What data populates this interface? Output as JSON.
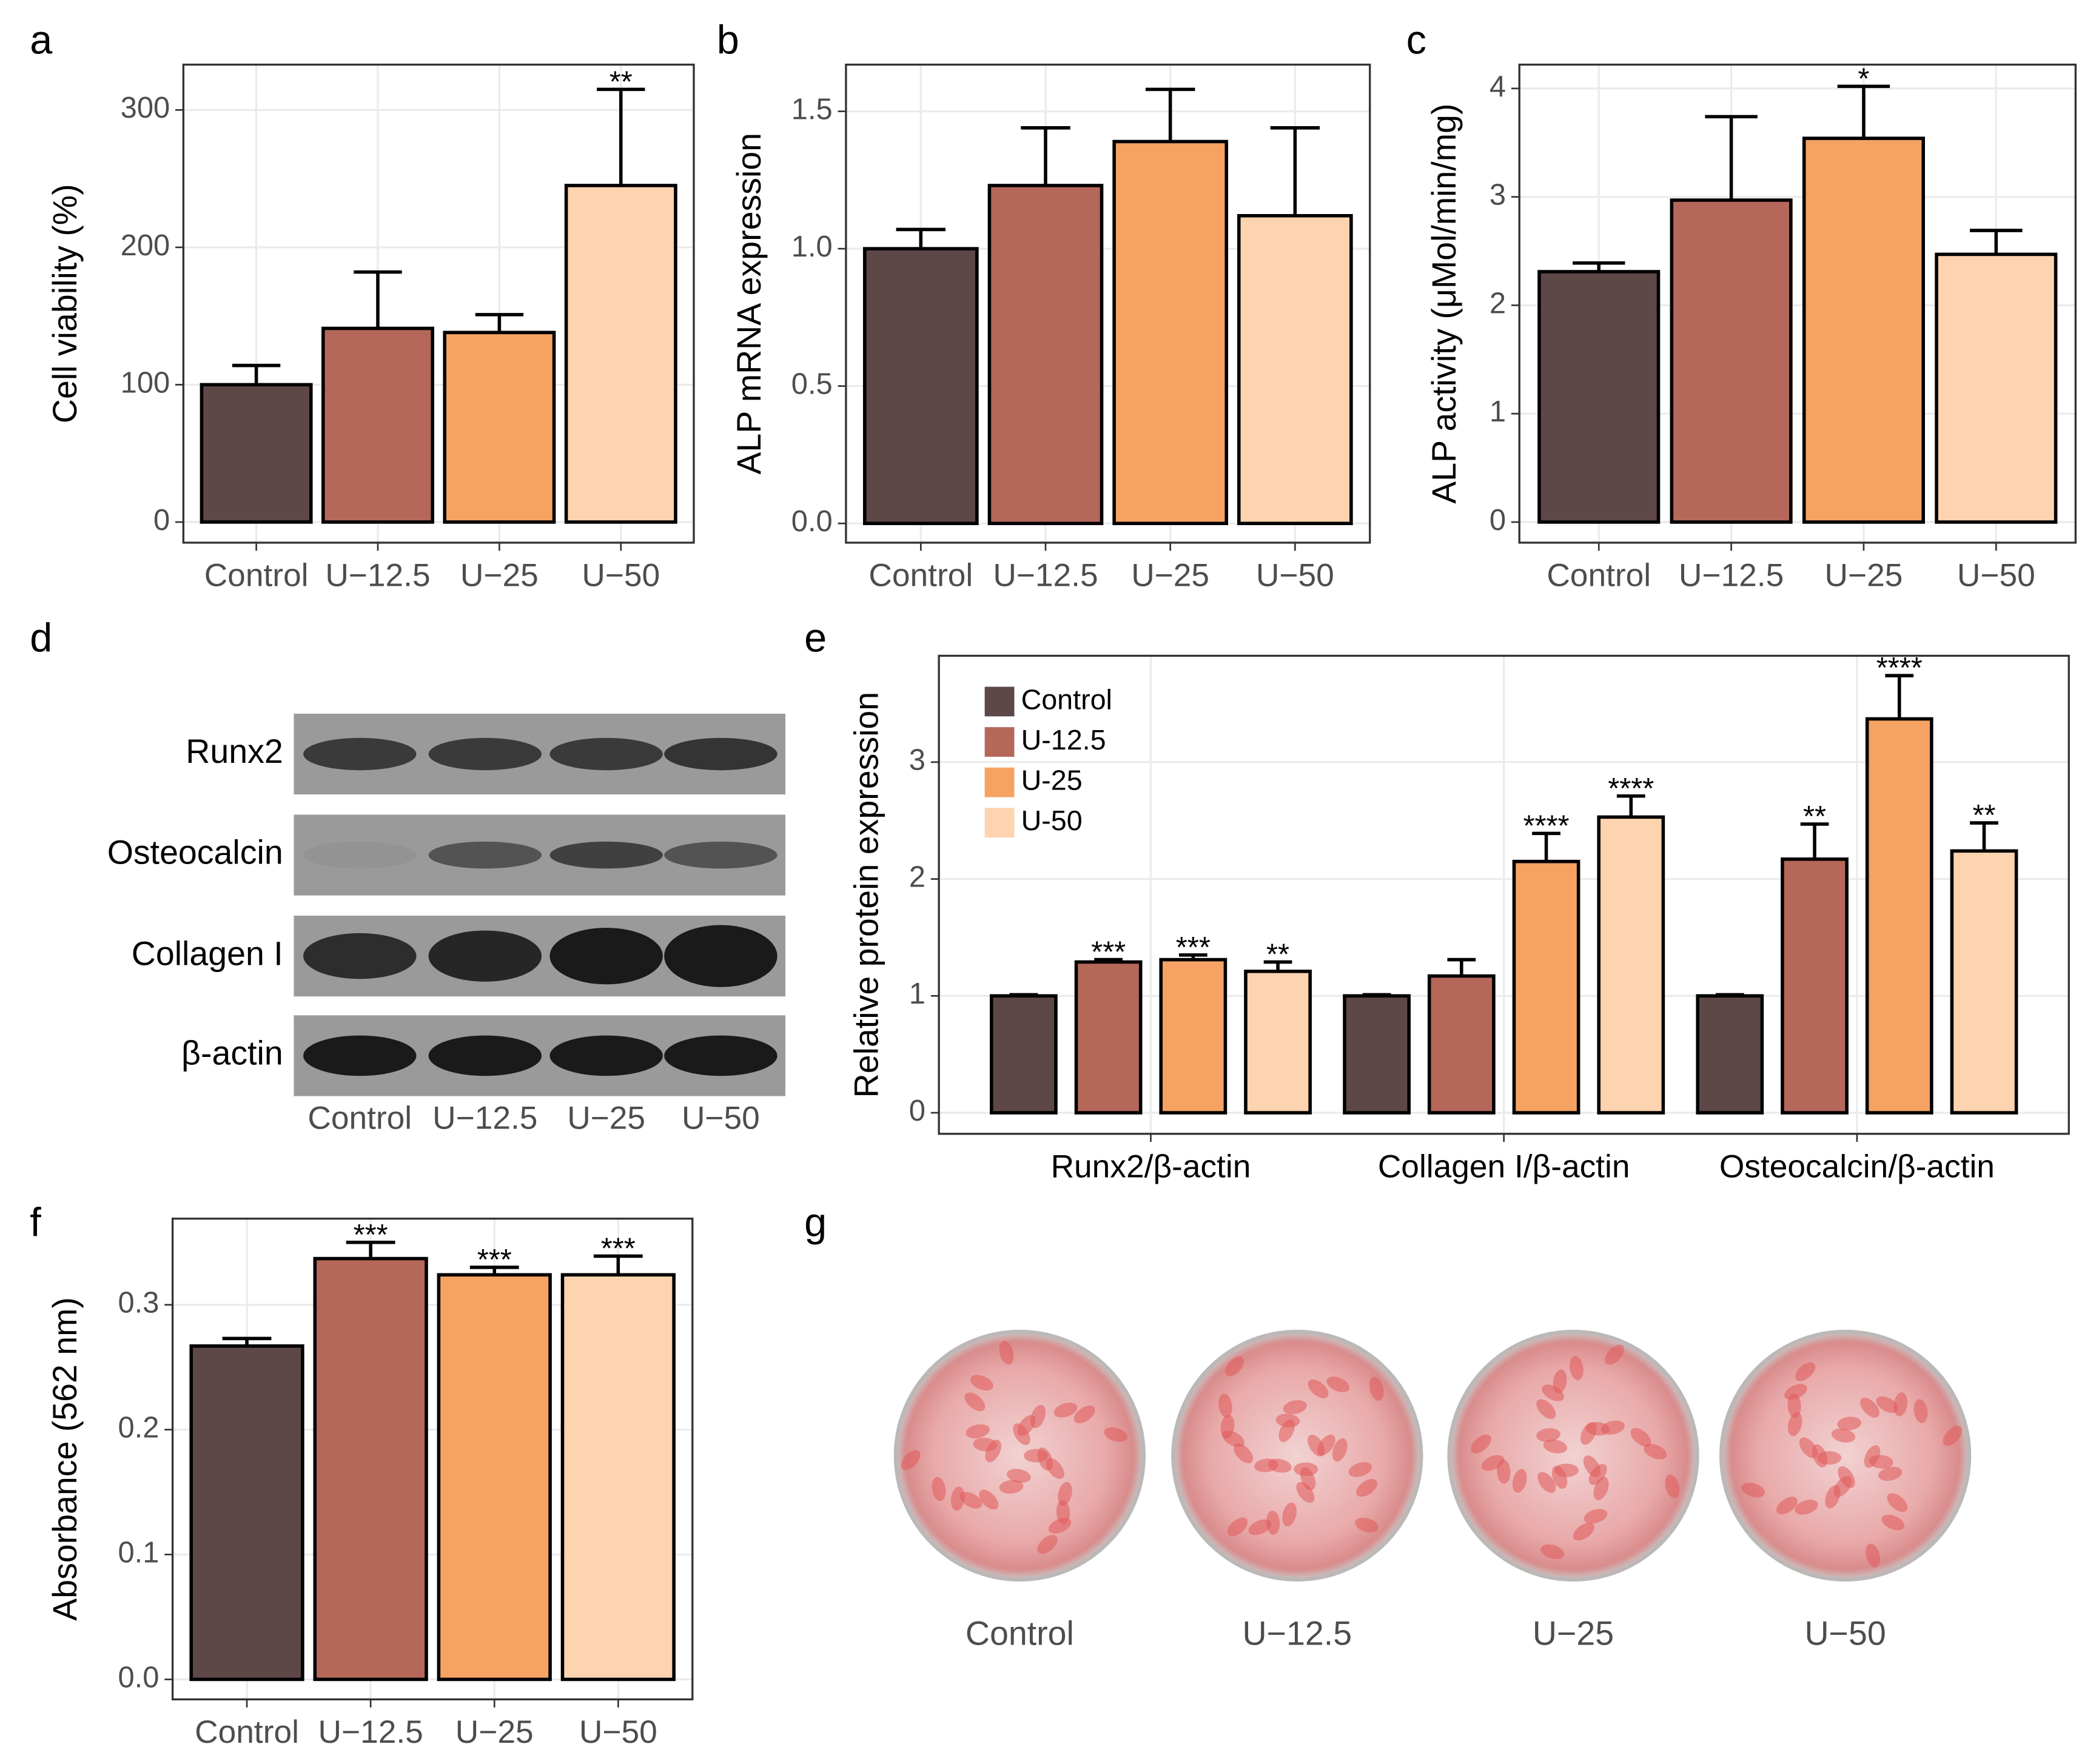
{
  "chart_data": [
    {
      "type": "bar",
      "panel": "a",
      "ylabel": "Cell viability (%)",
      "categories": [
        "Control",
        "U−12.5",
        "U−25",
        "U−50"
      ],
      "values": [
        100,
        141,
        138,
        245
      ],
      "errors": [
        14,
        41,
        13,
        70
      ],
      "annotations": [
        null,
        null,
        null,
        "**"
      ],
      "colors": [
        "#5e4747",
        "#b5675a",
        "#f5a262",
        "#fdd3b0"
      ],
      "ylim": [
        -15,
        333
      ],
      "yticks": [
        0,
        100,
        200,
        300
      ],
      "grid": true
    },
    {
      "type": "bar",
      "panel": "b",
      "ylabel": "ALP mRNA expression",
      "categories": [
        "Control",
        "U−12.5",
        "U−25",
        "U−50"
      ],
      "values": [
        1.0,
        1.23,
        1.39,
        1.12
      ],
      "errors": [
        0.07,
        0.21,
        0.19,
        0.32
      ],
      "colors": [
        "#5e4747",
        "#b5675a",
        "#f5a262",
        "#fdd3b0"
      ],
      "ylim": [
        -0.07,
        1.67
      ],
      "yticks": [
        {
          "value": 0,
          "label": "0.0"
        },
        0.5,
        {
          "value": 1,
          "label": "1.0"
        },
        1.5
      ],
      "grid": true
    },
    {
      "type": "bar",
      "panel": "c",
      "ylabel": "ALP activity (μMol/min/mg)",
      "categories": [
        "Control",
        "U−12.5",
        "U−25",
        "U−50"
      ],
      "values": [
        2.31,
        2.97,
        3.54,
        2.47
      ],
      "errors": [
        0.08,
        0.77,
        0.48,
        0.22
      ],
      "annotations": [
        null,
        null,
        "*",
        null
      ],
      "colors": [
        "#5e4747",
        "#b5675a",
        "#f5a262",
        "#fdd3b0"
      ],
      "ylim": [
        -0.19,
        4.22
      ],
      "yticks": [
        0,
        1,
        2,
        3,
        4
      ],
      "grid": true
    },
    {
      "type": "grouped-bar",
      "panel": "e",
      "ylabel": "Relative protein expression",
      "categories": [
        "Runx2/β-actin",
        "Collagen I/β-actin",
        "Osteocalcin/β-actin"
      ],
      "series": [
        {
          "name": "Control",
          "color": "#5e4747",
          "values": [
            1,
            1,
            1
          ],
          "errors": [
            0.01,
            0.01,
            0.01
          ]
        },
        {
          "name": "U-12.5",
          "color": "#b5675a",
          "values": [
            1.29,
            1.17,
            2.17
          ],
          "errors": [
            0.02,
            0.14,
            0.3
          ],
          "annotations": [
            "***",
            null,
            "**"
          ]
        },
        {
          "name": "U-25",
          "color": "#f5a262",
          "values": [
            1.31,
            2.15,
            3.37
          ],
          "errors": [
            0.04,
            0.24,
            0.37
          ],
          "annotations": [
            "***",
            "****",
            "****"
          ]
        },
        {
          "name": "U-50",
          "color": "#fdd3b0",
          "values": [
            1.21,
            2.53,
            2.24
          ],
          "errors": [
            0.08,
            0.18,
            0.24
          ],
          "annotations": [
            "**",
            "****",
            "**"
          ]
        }
      ],
      "legend": "top-left",
      "ylim": [
        -0.18,
        3.91
      ],
      "yticks": [
        0,
        1,
        2,
        3
      ],
      "grid": true
    },
    {
      "type": "bar",
      "panel": "f",
      "ylabel": "Absorbance (562 nm)",
      "categories": [
        "Control",
        "U−12.5",
        "U−25",
        "U−50"
      ],
      "values": [
        0.267,
        0.337,
        0.324,
        0.324
      ],
      "errors": [
        0.006,
        0.013,
        0.006,
        0.015
      ],
      "annotations": [
        null,
        "***",
        "***",
        "***"
      ],
      "colors": [
        "#5e4747",
        "#b5675a",
        "#f5a262",
        "#fdd3b0"
      ],
      "ylim": [
        -0.016,
        0.369
      ],
      "yticks": [
        {
          "value": 0,
          "label": "0.0"
        },
        0.1,
        0.2,
        0.3
      ],
      "grid": true
    }
  ],
  "blot": {
    "panel": "d",
    "rows": [
      "Runx2",
      "Osteocalcin",
      "Collagen I",
      "β-actin"
    ],
    "lanes": [
      "Control",
      "U−12.5",
      "U−25",
      "U−50"
    ]
  },
  "stain": {
    "panel": "g",
    "labels": [
      "Control",
      "U−12.5",
      "U−25",
      "U−50"
    ]
  }
}
